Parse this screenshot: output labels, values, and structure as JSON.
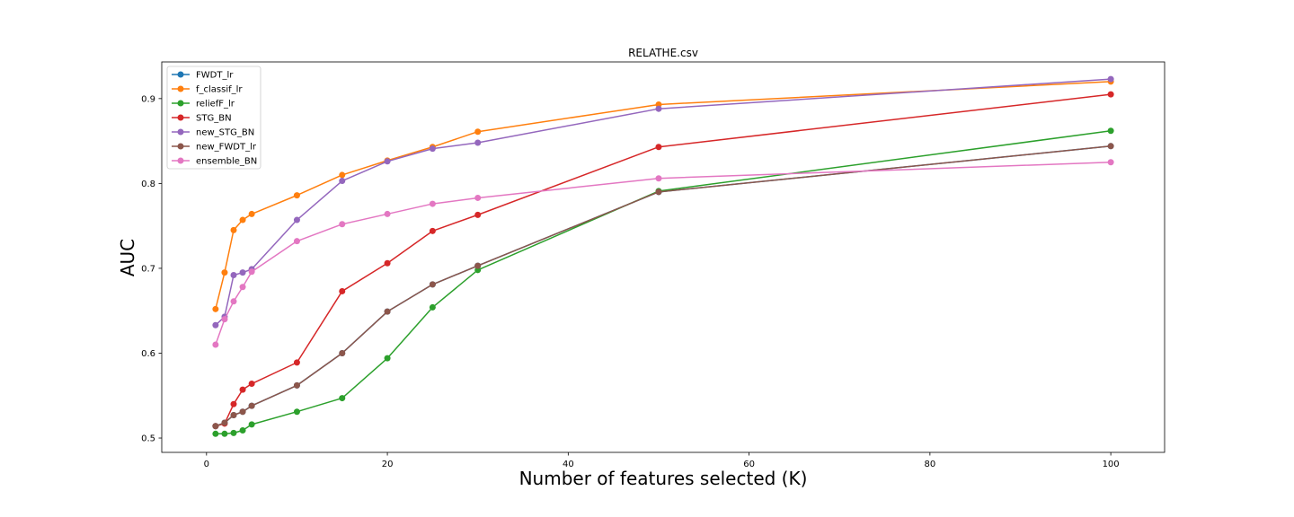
{
  "chart_data": {
    "type": "line",
    "title": "RELATHE.csv",
    "xlabel": "Number of features selected (K)",
    "ylabel": "AUC",
    "xlim": [
      -4.95,
      105.95
    ],
    "ylim": [
      0.4831,
      0.9432
    ],
    "xticks": [
      0,
      20,
      40,
      60,
      80,
      100
    ],
    "yticks": [
      0.5,
      0.6,
      0.7,
      0.8,
      0.9
    ],
    "grid": false,
    "legend_position": "upper-left",
    "x": [
      1,
      2,
      3,
      4,
      5,
      10,
      15,
      20,
      25,
      30,
      50,
      100
    ],
    "series": [
      {
        "name": "FWDT_lr",
        "color": "#1f77b4",
        "values": [
          0.514,
          0.518,
          0.527,
          0.531,
          0.538,
          0.562,
          0.6,
          0.649,
          0.681,
          0.703,
          0.79,
          0.844
        ]
      },
      {
        "name": "f_classif_lr",
        "color": "#ff7f0e",
        "values": [
          0.652,
          0.695,
          0.745,
          0.757,
          0.764,
          0.786,
          0.81,
          0.827,
          0.843,
          0.861,
          0.893,
          0.92
        ]
      },
      {
        "name": "reliefF_lr",
        "color": "#2ca02c",
        "values": [
          0.505,
          0.505,
          0.506,
          0.509,
          0.516,
          0.531,
          0.547,
          0.594,
          0.654,
          0.698,
          0.791,
          0.862
        ]
      },
      {
        "name": "STG_BN",
        "color": "#d62728",
        "values": [
          0.514,
          0.517,
          0.54,
          0.557,
          0.564,
          0.589,
          0.673,
          0.706,
          0.744,
          0.763,
          0.843,
          0.905
        ]
      },
      {
        "name": "new_STG_BN",
        "color": "#9467bd",
        "values": [
          0.633,
          0.643,
          0.692,
          0.695,
          0.699,
          0.757,
          0.803,
          0.826,
          0.841,
          0.848,
          0.888,
          0.923
        ]
      },
      {
        "name": "new_FWDT_lr",
        "color": "#8c564b",
        "values": [
          0.514,
          0.518,
          0.527,
          0.531,
          0.538,
          0.562,
          0.6,
          0.649,
          0.681,
          0.703,
          0.79,
          0.844
        ]
      },
      {
        "name": "ensemble_BN",
        "color": "#e377c2",
        "values": [
          0.61,
          0.64,
          0.661,
          0.678,
          0.696,
          0.732,
          0.752,
          0.764,
          0.776,
          0.783,
          0.806,
          0.825
        ]
      }
    ]
  }
}
